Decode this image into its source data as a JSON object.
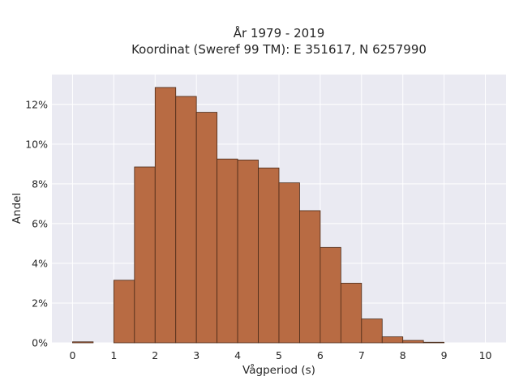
{
  "chart_data": {
    "type": "bar",
    "title": "År 1979 - 2019",
    "subtitle": "Koordinat (Sweref 99 TM): E 351617, N 6257990",
    "xlabel": "Vågperiod (s)",
    "ylabel": "Andel",
    "bin_width": 0.5,
    "bins": [
      {
        "x0": 0.0,
        "x1": 0.5,
        "value": 0.05
      },
      {
        "x0": 0.5,
        "x1": 1.0,
        "value": 0.0
      },
      {
        "x0": 1.0,
        "x1": 1.5,
        "value": 3.15
      },
      {
        "x0": 1.5,
        "x1": 2.0,
        "value": 8.85
      },
      {
        "x0": 2.0,
        "x1": 2.5,
        "value": 12.85
      },
      {
        "x0": 2.5,
        "x1": 3.0,
        "value": 12.4
      },
      {
        "x0": 3.0,
        "x1": 3.5,
        "value": 11.6
      },
      {
        "x0": 3.5,
        "x1": 4.0,
        "value": 9.25
      },
      {
        "x0": 4.0,
        "x1": 4.5,
        "value": 9.2
      },
      {
        "x0": 4.5,
        "x1": 5.0,
        "value": 8.8
      },
      {
        "x0": 5.0,
        "x1": 5.5,
        "value": 8.05
      },
      {
        "x0": 5.5,
        "x1": 6.0,
        "value": 6.65
      },
      {
        "x0": 6.0,
        "x1": 6.5,
        "value": 4.8
      },
      {
        "x0": 6.5,
        "x1": 7.0,
        "value": 3.0
      },
      {
        "x0": 7.0,
        "x1": 7.5,
        "value": 1.2
      },
      {
        "x0": 7.5,
        "x1": 8.0,
        "value": 0.3
      },
      {
        "x0": 8.0,
        "x1": 8.5,
        "value": 0.12
      },
      {
        "x0": 8.5,
        "x1": 9.0,
        "value": 0.03
      }
    ],
    "xticks": [
      "0",
      "1",
      "2",
      "3",
      "4",
      "5",
      "6",
      "7",
      "8",
      "9",
      "10"
    ],
    "xtick_values": [
      0,
      1,
      2,
      3,
      4,
      5,
      6,
      7,
      8,
      9,
      10
    ],
    "yticks": [
      "0%",
      "2%",
      "4%",
      "6%",
      "8%",
      "10%",
      "12%"
    ],
    "ytick_values": [
      0,
      2,
      4,
      6,
      8,
      10,
      12
    ],
    "xlim": [
      -0.5,
      10.5
    ],
    "ylim": [
      0,
      13.5
    ],
    "grid": true,
    "bar_color": "#b86b43",
    "plot_background": "#eaeaf2"
  }
}
